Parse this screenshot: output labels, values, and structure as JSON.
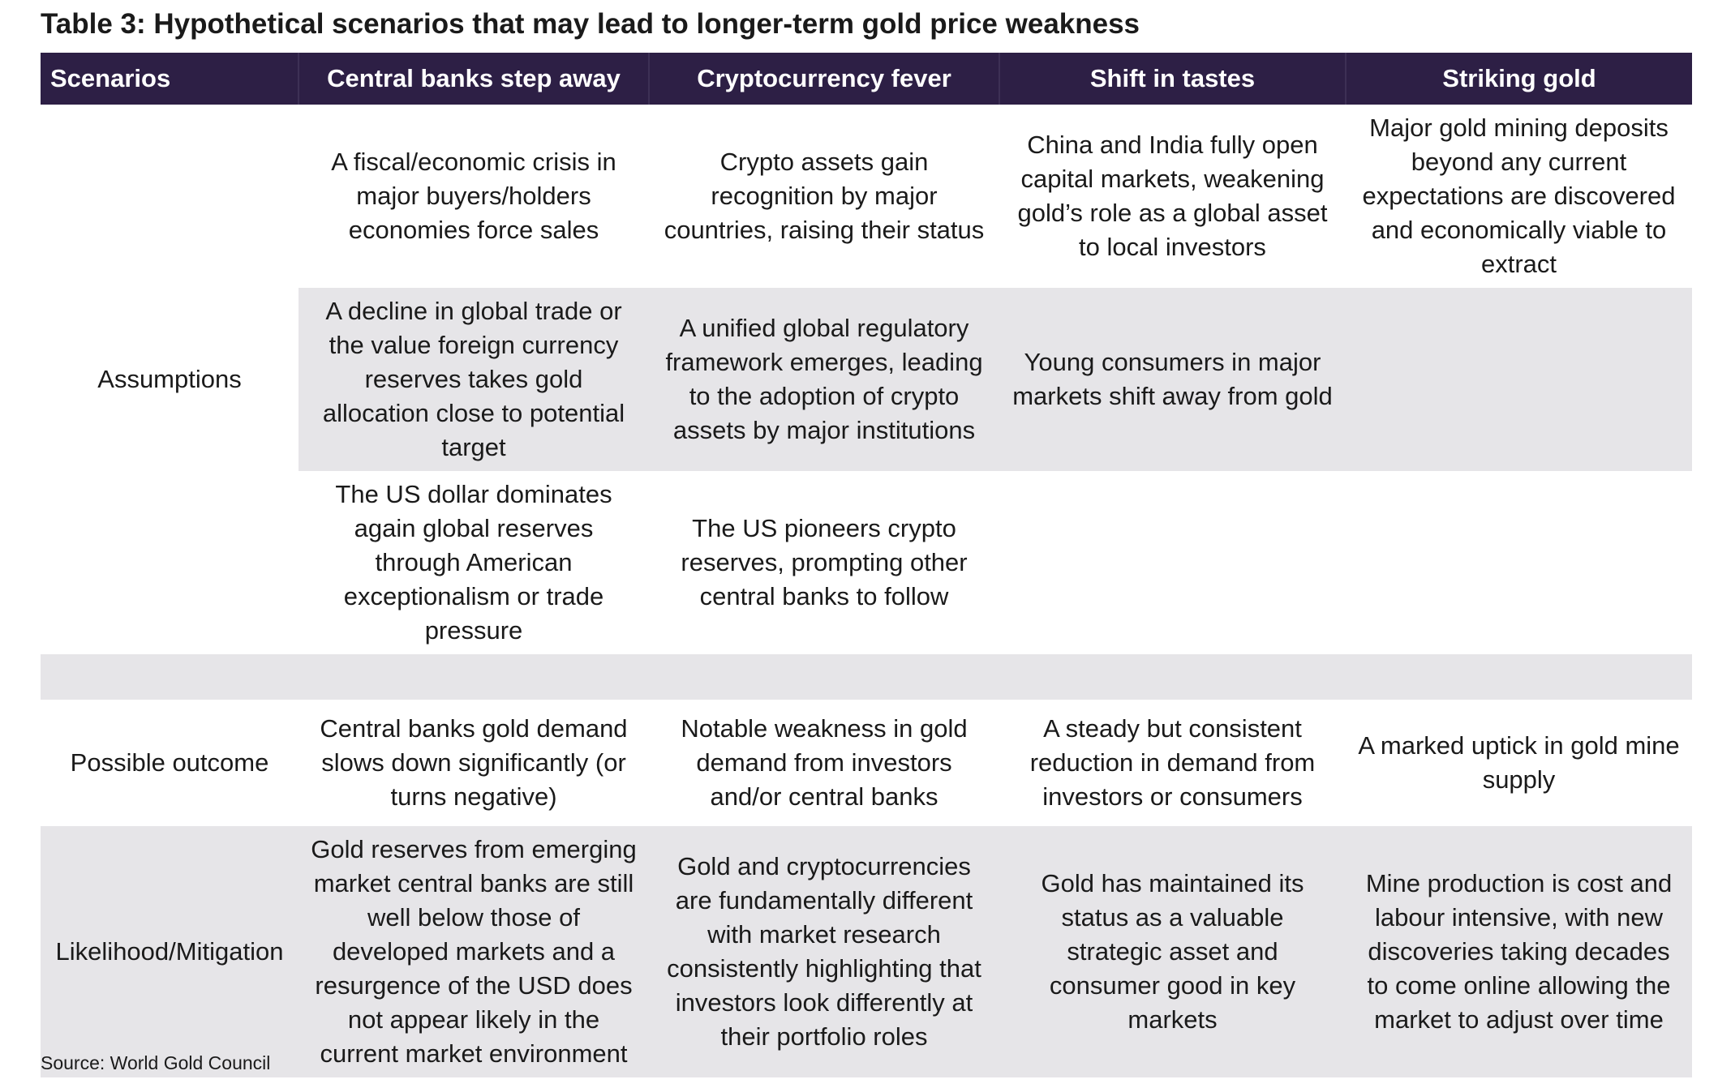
{
  "title": "Table 3: Hypothetical scenarios that may lead to longer-term gold price weakness",
  "headers": [
    "Scenarios",
    "Central banks step away",
    "Cryptocurrency fever",
    "Shift in tastes",
    "Striking gold"
  ],
  "assumptions": {
    "label": "Assumptions",
    "rows": [
      [
        "A fiscal/economic crisis in major buyers/holders economies force sales",
        "Crypto assets gain recognition by major countries, raising their status",
        "China and India fully open capital markets, weakening gold’s role as a global asset to local investors",
        "Major gold mining deposits beyond any current expectations are discovered and economically viable to extract"
      ],
      [
        "A decline in global trade or the value foreign currency reserves takes gold allocation close to potential target",
        "A unified global regulatory framework emerges, leading to the adoption of crypto assets by major institutions",
        "Young consumers in major markets shift away from gold",
        ""
      ],
      [
        "The US dollar dominates again global reserves through American exceptionalism or trade pressure",
        "The US pioneers crypto reserves, prompting other central banks to follow",
        "",
        ""
      ]
    ]
  },
  "outcome": {
    "label": "Possible outcome",
    "cells": [
      "Central banks gold demand slows down significantly (or turns negative)",
      "Notable weakness in gold demand from investors and/or central banks",
      "A steady but consistent reduction in demand from investors or consumers",
      "A marked uptick in gold mine supply"
    ]
  },
  "likelihood": {
    "label": "Likelihood/Mitigation",
    "cells": [
      "Gold reserves from emerging market central banks are still well below those of developed markets and a resurgence of the USD does not appear likely in the current market environment",
      "Gold and cryptocurrencies are fundamentally different with market research consistently highlighting that investors look differently at their portfolio roles",
      "Gold has maintained its status as a valuable strategic asset and consumer good in key markets",
      "Mine production is cost and labour intensive, with new discoveries taking decades to come online allowing the market to adjust over time"
    ]
  },
  "source": "Source: World Gold Council",
  "colors": {
    "header_bg": "#2d1f45",
    "shade": "#e6e5e8"
  }
}
